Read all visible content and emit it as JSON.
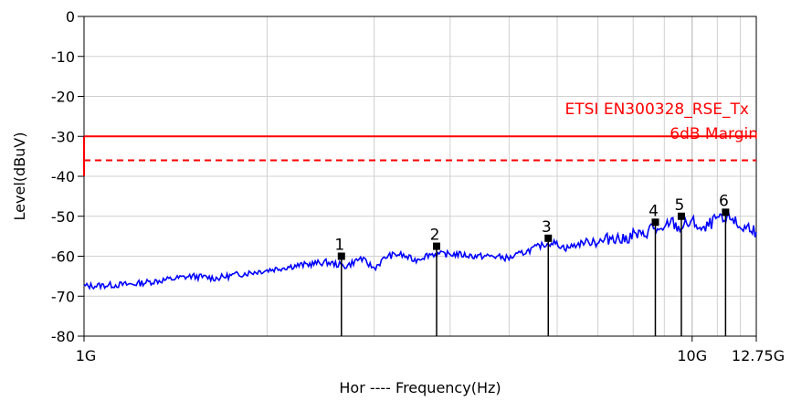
{
  "chart_data": {
    "type": "line",
    "xlabel": "Hor ---- Frequency(Hz)",
    "ylabel": "Level(dBuV)",
    "x_scale": "log",
    "xlim": [
      1,
      12.75
    ],
    "ylim": [
      -80,
      0
    ],
    "y_ticks": [
      0,
      -10,
      -20,
      -30,
      -40,
      -50,
      -60,
      -70,
      -80
    ],
    "x_tick_labels": [
      {
        "value": 1,
        "label": "1G"
      },
      {
        "value": 10,
        "label": "10G"
      },
      {
        "value": 12.75,
        "label": "12.75G"
      }
    ],
    "grid": true,
    "limit_line": {
      "name": "ETSI EN300328_RSE_Tx",
      "level": -30,
      "color": "#ff0000"
    },
    "margin_line": {
      "name": "6dB Margin",
      "level": -36,
      "color": "#ff0000",
      "style": "dashed"
    },
    "trace": {
      "color": "#0000ff",
      "points": [
        [
          1.0,
          -67.5
        ],
        [
          1.2,
          -67
        ],
        [
          1.35,
          -66
        ],
        [
          1.5,
          -65
        ],
        [
          1.65,
          -65.5
        ],
        [
          1.8,
          -64.5
        ],
        [
          2.0,
          -63.5
        ],
        [
          2.2,
          -62.5
        ],
        [
          2.5,
          -61.5
        ],
        [
          2.7,
          -62.5
        ],
        [
          2.85,
          -60.5
        ],
        [
          3.0,
          -63
        ],
        [
          3.15,
          -60
        ],
        [
          3.3,
          -59.5
        ],
        [
          3.5,
          -61
        ],
        [
          3.7,
          -59.5
        ],
        [
          3.9,
          -59.5
        ],
        [
          4.1,
          -59.5
        ],
        [
          4.4,
          -60
        ],
        [
          4.7,
          -60
        ],
        [
          5.0,
          -60.5
        ],
        [
          5.3,
          -59
        ],
        [
          5.6,
          -57.5
        ],
        [
          5.9,
          -56.5
        ],
        [
          6.2,
          -58
        ],
        [
          6.5,
          -57
        ],
        [
          6.8,
          -56
        ],
        [
          7.1,
          -56.5
        ],
        [
          7.4,
          -55
        ],
        [
          7.7,
          -56
        ],
        [
          8.0,
          -54.5
        ],
        [
          8.3,
          -55
        ],
        [
          8.6,
          -52.5
        ],
        [
          8.9,
          -54.5
        ],
        [
          9.2,
          -51
        ],
        [
          9.5,
          -53
        ],
        [
          9.8,
          -52
        ],
        [
          10.1,
          -51.5
        ],
        [
          10.4,
          -54
        ],
        [
          10.7,
          -52
        ],
        [
          11.0,
          -50.5
        ],
        [
          11.3,
          -51.5
        ],
        [
          11.6,
          -50
        ],
        [
          11.9,
          -52.5
        ],
        [
          12.2,
          -53
        ],
        [
          12.5,
          -52.5
        ],
        [
          12.75,
          -54
        ]
      ]
    },
    "markers": [
      {
        "label": "1",
        "freq": 2.65,
        "level": -60
      },
      {
        "label": "2",
        "freq": 3.8,
        "level": -57.5
      },
      {
        "label": "3",
        "freq": 5.8,
        "level": -55.5
      },
      {
        "label": "4",
        "freq": 8.7,
        "level": -51.5
      },
      {
        "label": "5",
        "freq": 9.6,
        "level": -50
      },
      {
        "label": "6",
        "freq": 11.35,
        "level": -49
      }
    ]
  }
}
